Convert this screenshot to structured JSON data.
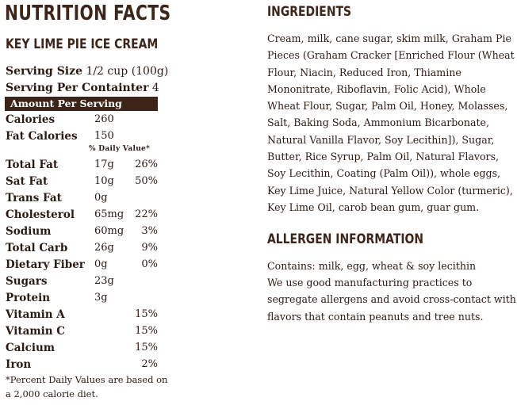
{
  "left": {
    "title": "NUTRITION FACTS",
    "subtitle": "KEY LIME PIE ICE CREAM",
    "serving_size_label": "Serving Size",
    "serving_size_value": "1/2 cup (100g)",
    "servings_label": "Serving Per Containter",
    "servings_value": "4",
    "amount_header": "Amount Per Serving",
    "dv_header": "% Daily Value*",
    "rows": [
      {
        "label": "Calories",
        "amount": "260",
        "pct": ""
      },
      {
        "label": "Fat Calories",
        "amount": "150",
        "pct": ""
      },
      {
        "label": "Total Fat",
        "amount": "17g",
        "pct": "26%"
      },
      {
        "label": "Sat Fat",
        "amount": "10g",
        "pct": "50%"
      },
      {
        "label": "Trans Fat",
        "amount": "0g",
        "pct": ""
      },
      {
        "label": "Cholesterol",
        "amount": "65mg",
        "pct": "22%"
      },
      {
        "label": "Sodium",
        "amount": "60mg",
        "pct": "3%"
      },
      {
        "label": "Total Carb",
        "amount": "26g",
        "pct": "9%"
      },
      {
        "label": "Dietary Fiber",
        "amount": "0g",
        "pct": "0%"
      },
      {
        "label": "Sugars",
        "amount": "23g",
        "pct": ""
      },
      {
        "label": "Protein",
        "amount": "3g",
        "pct": ""
      },
      {
        "label": "Vitamin A",
        "amount": "",
        "pct": "15%"
      },
      {
        "label": "Vitamin C",
        "amount": "",
        "pct": "15%"
      },
      {
        "label": "Calcium",
        "amount": "",
        "pct": "15%"
      },
      {
        "label": "Iron",
        "amount": "",
        "pct": "2%"
      }
    ],
    "footnote": "*Percent Daily Values are based on a 2,000 calorie diet."
  },
  "right": {
    "ingredients_title": "INGREDIENTS",
    "ingredients_text": "Cream, milk, cane sugar, skim milk, Graham Pie Pieces (Graham Cracker [Enriched Flour (Wheat Flour, Niacin, Reduced Iron, Thiamine Mononitrate, Riboflavin, Folic Acid), Whole Wheat Flour, Sugar, Palm Oil, Honey, Molasses, Salt, Baking Soda, Ammonium Bicarbonate, Natural Vanilla Flavor, Soy Lecithin]), Sugar, Butter, Rice Syrup, Palm Oil, Natural Flavors, Soy Lecithin, Coating (Palm Oil)), whole eggs, Key Lime Juice, Natural Yellow Color (turmeric), Key Lime Oil, carob bean gum, guar gum.",
    "allergen_title": "ALLERGEN INFORMATION",
    "allergen_contains": "Contains: milk, egg, wheat & soy lecithin",
    "allergen_practice": "We use good manufacturing practices to segregate allergens and avoid cross-contact with flavors that contain peanuts and tree nuts."
  },
  "colors": {
    "heading": "#3d2519",
    "text": "#2b1a12",
    "amount_bar_bg": "#3d2418",
    "amount_bar_text": "#ffffff"
  }
}
